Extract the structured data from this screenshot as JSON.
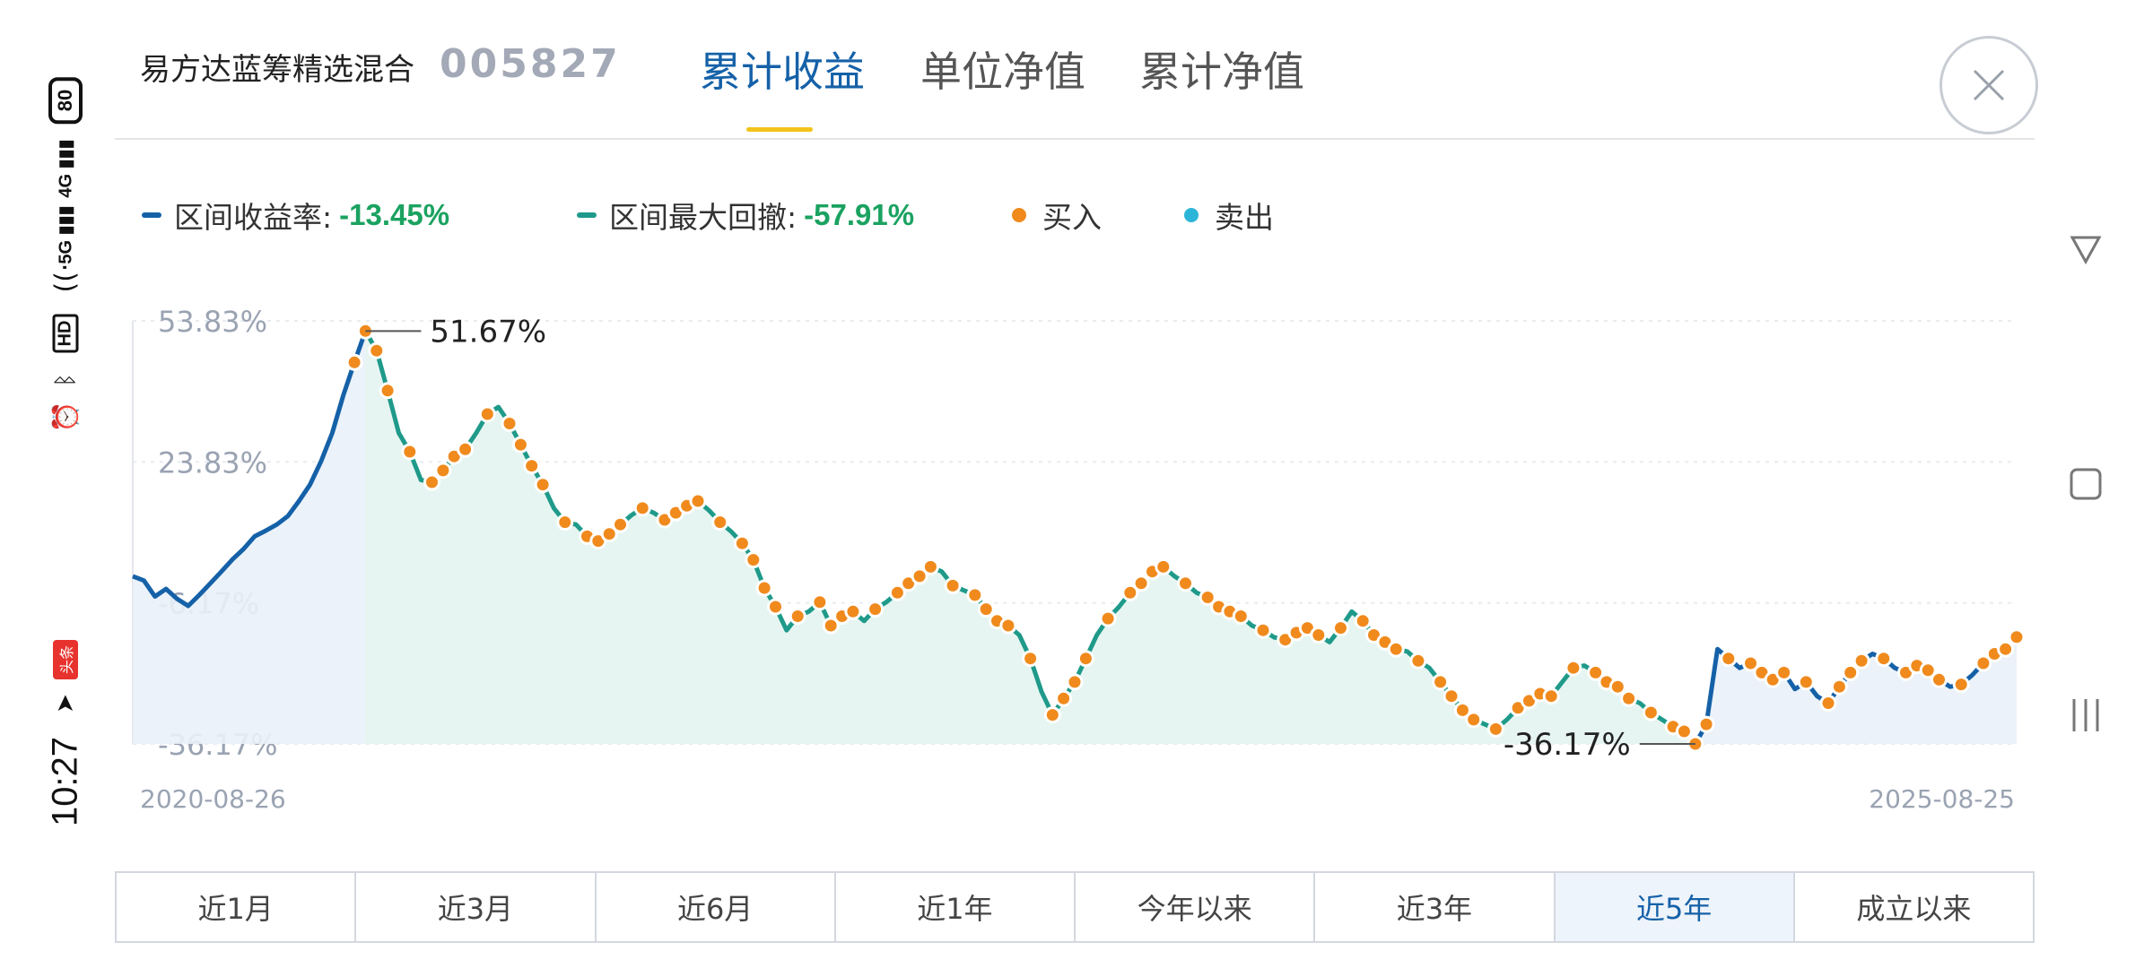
{
  "status_bar": {
    "time": "10:27",
    "battery": "80",
    "net_4g": "4G",
    "net_5g": "5G",
    "hd": "HD",
    "app_badge": "头条",
    "icons": [
      "battery-icon",
      "signal-4g-icon",
      "signal-5g-icon",
      "wifi-icon",
      "hd-call-icon",
      "bluetooth-icon",
      "alarm-icon",
      "toutiao-icon",
      "send-icon"
    ]
  },
  "header": {
    "fund_name": "易方达蓝筹精选混合",
    "fund_code": "005827",
    "tabs": [
      {
        "label": "累计收益",
        "active": true
      },
      {
        "label": "单位净值",
        "active": false
      },
      {
        "label": "累计净值",
        "active": false
      }
    ],
    "close_icon": "close-icon"
  },
  "legend": {
    "return_label": "区间收益率:",
    "return_value": "-13.45%",
    "drawdown_label": "区间最大回撤:",
    "drawdown_value": "-57.91%",
    "buy_label": "买入",
    "sell_label": "卖出",
    "colors": {
      "return": "#1561a8",
      "drawdown": "#1f9a8a",
      "buy": "#f08a1c",
      "sell": "#2bb5d8",
      "value": "#1aa260"
    }
  },
  "chart_data": {
    "type": "line",
    "x_start": "2020-08-26",
    "x_end": "2025-08-25",
    "y_ticks": [
      "53.83%",
      "23.83%",
      "-6.17%",
      "-36.17%"
    ],
    "ylim": [
      -36.17,
      53.83
    ],
    "grid": true,
    "annotations": [
      {
        "text": "51.67%",
        "x": "2021-02",
        "y": 51.67
      },
      {
        "text": "-36.17%",
        "x": "2024-09",
        "y": -36.17
      }
    ],
    "series": [
      {
        "values": [
          -0.5,
          -1.4,
          -4.8,
          -3.2,
          -5.3,
          -6.8,
          -4.5,
          -2.0,
          0.5,
          3.1,
          5.3,
          8.0,
          9.2,
          10.5,
          12.3,
          15.5,
          19.0,
          24.0,
          30.0,
          38.0,
          45.0,
          51.67,
          47.5,
          39.0,
          30.0,
          26.0,
          20.0,
          19.5,
          22.0,
          25.0,
          26.5,
          30.0,
          34.0,
          35.5,
          32.0,
          27.5,
          23.0,
          19.0,
          14.0,
          11.0,
          10.5,
          8.0,
          7.0,
          8.5,
          10.5,
          12.5,
          14.0,
          13.0,
          11.5,
          13.0,
          14.5,
          15.5,
          13.5,
          11.0,
          9.0,
          6.5,
          3.0,
          -3.0,
          -7.0,
          -12.0,
          -9.0,
          -8.0,
          -6.0,
          -11.0,
          -9.0,
          -8.0,
          -10.0,
          -7.5,
          -6.0,
          -4.0,
          -2.0,
          -0.5,
          1.5,
          0.5,
          -2.5,
          -3.5,
          -4.5,
          -7.5,
          -10.0,
          -11.0,
          -13.0,
          -18.0,
          -25.0,
          -30.0,
          -26.5,
          -23.0,
          -18.0,
          -13.0,
          -9.5,
          -7.0,
          -4.0,
          -2.0,
          0.5,
          1.5,
          -0.5,
          -2.0,
          -4.0,
          -5.0,
          -7.0,
          -8.0,
          -9.0,
          -11.0,
          -12.0,
          -13.5,
          -14.0,
          -12.5,
          -11.5,
          -13.0,
          -14.5,
          -11.5,
          -8.0,
          -10.0,
          -13.0,
          -14.5,
          -16.0,
          -16.5,
          -18.5,
          -20.0,
          -23.0,
          -26.0,
          -29.0,
          -31.0,
          -32.0,
          -33.0,
          -31.0,
          -28.5,
          -27.0,
          -25.5,
          -26.0,
          -23.0,
          -20.0,
          -19.5,
          -21.0,
          -23.0,
          -24.0,
          -26.5,
          -27.5,
          -29.5,
          -31.0,
          -32.5,
          -33.5,
          -36.17,
          -32.0,
          -16.0,
          -18.0,
          -20.0,
          -19.0,
          -21.0,
          -22.5,
          -21.0,
          -24.5,
          -23.0,
          -26.0,
          -27.5,
          -24.0,
          -21.0,
          -18.5,
          -17.0,
          -18.0,
          -20.0,
          -21.0,
          -19.5,
          -20.5,
          -22.5,
          -24.0,
          -23.5,
          -21.5,
          -19.0,
          -17.0,
          -16.0,
          -13.45
        ]
      }
    ],
    "buy_color": "#f08a1c",
    "return_color": "#1561a8",
    "drawdown_color": "#1f9a8a",
    "x_labels": [
      "2020-08-26",
      "2025-08-25"
    ]
  },
  "ranges": [
    {
      "label": "近1月",
      "active": false
    },
    {
      "label": "近3月",
      "active": false
    },
    {
      "label": "近6月",
      "active": false
    },
    {
      "label": "近1年",
      "active": false
    },
    {
      "label": "今年以来",
      "active": false
    },
    {
      "label": "近3年",
      "active": false
    },
    {
      "label": "近5年",
      "active": true
    },
    {
      "label": "成立以来",
      "active": false
    }
  ],
  "nav": {
    "icons": [
      "back-triangle-icon",
      "home-square-icon",
      "recents-lines-icon"
    ]
  }
}
